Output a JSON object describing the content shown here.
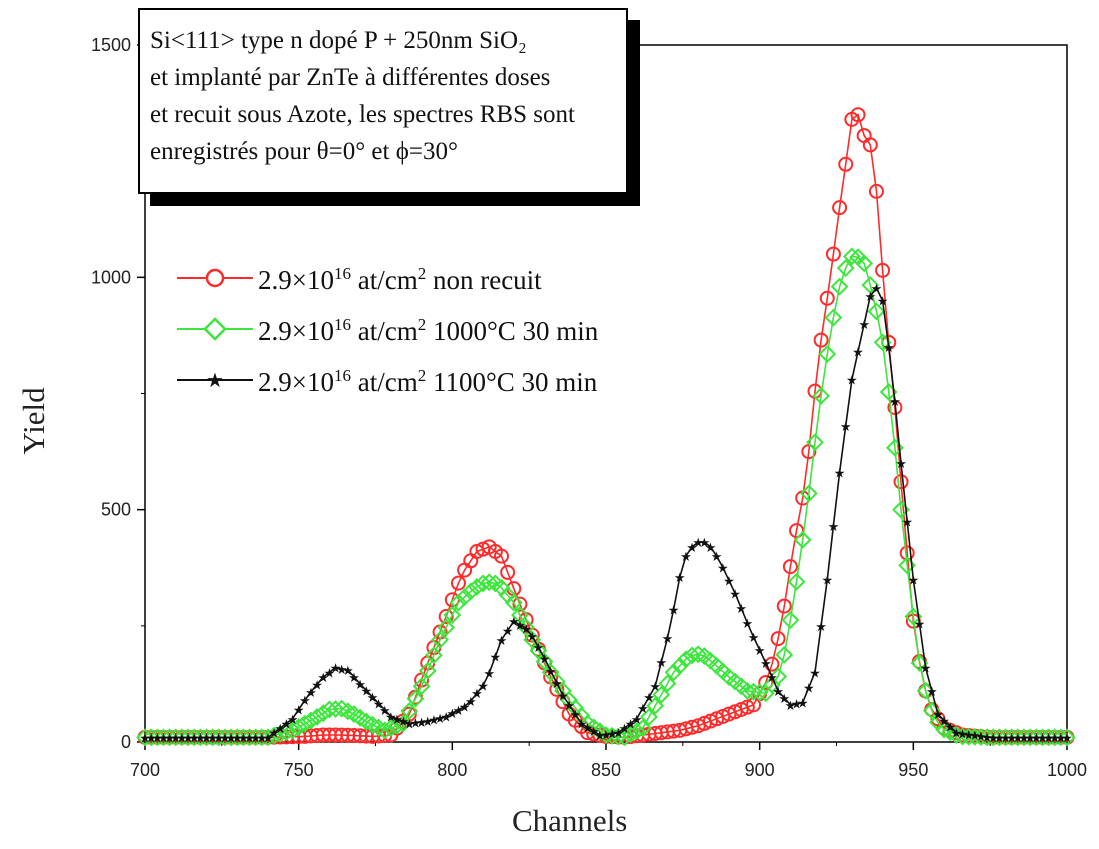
{
  "chart_data": {
    "type": "line",
    "xlabel": "Channels",
    "ylabel": "Yield",
    "xlim": [
      700,
      1000
    ],
    "ylim": [
      0,
      1500
    ],
    "xticks": [
      "700",
      "750",
      "800",
      "850",
      "900",
      "950",
      "1000"
    ],
    "yticks": [
      "0",
      "500",
      "1000",
      "1500"
    ],
    "grid": false,
    "legend_position": "upper-left",
    "annotation": {
      "line1": "Si<111> type n dopé P + 250nm SiO₂",
      "line2": "et implanté par ZnTe à différentes doses",
      "line3": "et recuit sous Azote, les spectres RBS sont",
      "line4": "enregistrés pour θ=0° et ϕ=30°"
    },
    "series": [
      {
        "name": "2.9×10¹⁶ at/cm² non recuit",
        "label_main": "2.9×10",
        "label_exp": "16",
        "label_unit": " at/cm",
        "label_unit_exp": "2",
        "label_tail": " non recuit",
        "color": "#ff2a2a",
        "marker": "circle-open",
        "points": [
          [
            700,
            10
          ],
          [
            740,
            10
          ],
          [
            752,
            12
          ],
          [
            758,
            15
          ],
          [
            763,
            15
          ],
          [
            768,
            14
          ],
          [
            774,
            12
          ],
          [
            780,
            15
          ],
          [
            786,
            60
          ],
          [
            792,
            170
          ],
          [
            798,
            270
          ],
          [
            803,
            360
          ],
          [
            808,
            410
          ],
          [
            812,
            420
          ],
          [
            816,
            400
          ],
          [
            820,
            330
          ],
          [
            826,
            230
          ],
          [
            832,
            140
          ],
          [
            838,
            60
          ],
          [
            844,
            20
          ],
          [
            850,
            12
          ],
          [
            856,
            10
          ],
          [
            862,
            15
          ],
          [
            868,
            20
          ],
          [
            874,
            25
          ],
          [
            880,
            35
          ],
          [
            886,
            50
          ],
          [
            892,
            65
          ],
          [
            898,
            80
          ],
          [
            903,
            140
          ],
          [
            907,
            250
          ],
          [
            911,
            420
          ],
          [
            915,
            560
          ],
          [
            919,
            820
          ],
          [
            923,
            1000
          ],
          [
            926,
            1150
          ],
          [
            929,
            1290
          ],
          [
            931,
            1390
          ],
          [
            933,
            1310
          ],
          [
            935,
            1300
          ],
          [
            937,
            1270
          ],
          [
            939,
            1100
          ],
          [
            941,
            930
          ],
          [
            944,
            720
          ],
          [
            947,
            480
          ],
          [
            950,
            260
          ],
          [
            953,
            130
          ],
          [
            956,
            70
          ],
          [
            960,
            30
          ],
          [
            966,
            15
          ],
          [
            975,
            10
          ],
          [
            1000,
            10
          ]
        ]
      },
      {
        "name": "2.9×10¹⁶ at/cm² 1000°C 30 min",
        "label_main": "2.9×10",
        "label_exp": "16",
        "label_unit": " at/cm",
        "label_unit_exp": "2",
        "label_tail": " 1000°C 30 min",
        "color": "#3ce63c",
        "marker": "diamond-open",
        "points": [
          [
            700,
            10
          ],
          [
            740,
            10
          ],
          [
            748,
            25
          ],
          [
            755,
            50
          ],
          [
            760,
            70
          ],
          [
            764,
            72
          ],
          [
            768,
            60
          ],
          [
            773,
            40
          ],
          [
            778,
            25
          ],
          [
            784,
            40
          ],
          [
            790,
            120
          ],
          [
            796,
            220
          ],
          [
            802,
            300
          ],
          [
            807,
            330
          ],
          [
            811,
            345
          ],
          [
            815,
            340
          ],
          [
            820,
            300
          ],
          [
            826,
            220
          ],
          [
            832,
            150
          ],
          [
            838,
            90
          ],
          [
            844,
            40
          ],
          [
            850,
            15
          ],
          [
            856,
            10
          ],
          [
            862,
            30
          ],
          [
            867,
            90
          ],
          [
            872,
            150
          ],
          [
            877,
            185
          ],
          [
            881,
            190
          ],
          [
            885,
            170
          ],
          [
            890,
            140
          ],
          [
            896,
            110
          ],
          [
            902,
            105
          ],
          [
            907,
            150
          ],
          [
            911,
            300
          ],
          [
            915,
            480
          ],
          [
            919,
            700
          ],
          [
            923,
            880
          ],
          [
            926,
            980
          ],
          [
            929,
            1040
          ],
          [
            931,
            1050
          ],
          [
            934,
            1030
          ],
          [
            937,
            960
          ],
          [
            940,
            860
          ],
          [
            943,
            700
          ],
          [
            946,
            500
          ],
          [
            949,
            320
          ],
          [
            952,
            170
          ],
          [
            955,
            80
          ],
          [
            959,
            30
          ],
          [
            965,
            12
          ],
          [
            975,
            10
          ],
          [
            1000,
            10
          ]
        ]
      },
      {
        "name": "2.9×10¹⁶ at/cm² 1100°C 30 min",
        "label_main": "2.9×10",
        "label_exp": "16",
        "label_unit": " at/cm",
        "label_unit_exp": "2",
        "label_tail": " 1100°C 30 min",
        "color": "#111111",
        "marker": "star",
        "points": [
          [
            700,
            10
          ],
          [
            740,
            10
          ],
          [
            748,
            50
          ],
          [
            753,
            100
          ],
          [
            758,
            140
          ],
          [
            762,
            160
          ],
          [
            766,
            155
          ],
          [
            770,
            125
          ],
          [
            775,
            90
          ],
          [
            780,
            55
          ],
          [
            786,
            40
          ],
          [
            792,
            45
          ],
          [
            798,
            55
          ],
          [
            805,
            80
          ],
          [
            811,
            130
          ],
          [
            816,
            220
          ],
          [
            820,
            260
          ],
          [
            825,
            240
          ],
          [
            830,
            180
          ],
          [
            836,
            100
          ],
          [
            842,
            40
          ],
          [
            848,
            15
          ],
          [
            854,
            20
          ],
          [
            860,
            50
          ],
          [
            866,
            120
          ],
          [
            871,
            250
          ],
          [
            875,
            390
          ],
          [
            879,
            430
          ],
          [
            883,
            430
          ],
          [
            887,
            390
          ],
          [
            892,
            320
          ],
          [
            897,
            240
          ],
          [
            902,
            170
          ],
          [
            906,
            110
          ],
          [
            910,
            80
          ],
          [
            914,
            85
          ],
          [
            918,
            150
          ],
          [
            922,
            350
          ],
          [
            926,
            580
          ],
          [
            930,
            780
          ],
          [
            934,
            900
          ],
          [
            937,
            990
          ],
          [
            940,
            950
          ],
          [
            943,
            800
          ],
          [
            946,
            600
          ],
          [
            950,
            350
          ],
          [
            954,
            160
          ],
          [
            958,
            60
          ],
          [
            964,
            20
          ],
          [
            975,
            10
          ],
          [
            1000,
            10
          ]
        ]
      }
    ]
  }
}
